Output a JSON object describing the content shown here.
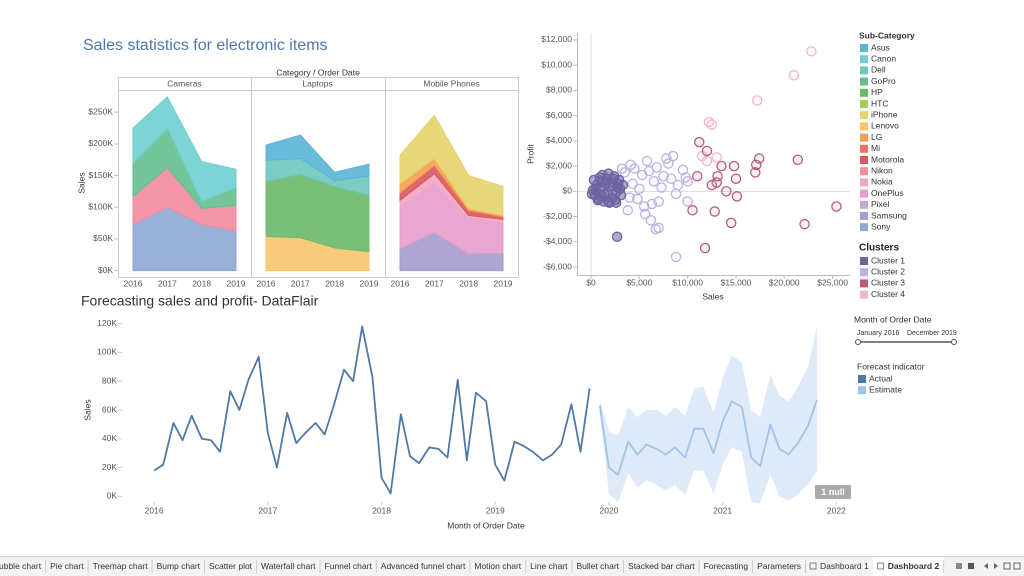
{
  "tabs": [
    "ubble chart",
    "Pie chart",
    "Treemap chart",
    "Bump chart",
    "Scatter plot",
    "Waterfall chart",
    "Funnel chart",
    "Advanced funnel chart",
    "Motion chart",
    "Line chart",
    "Bullet chart",
    "Stacked bar chart",
    "Forecasting",
    "Parameters",
    "Dashboard 1",
    "Dashboard 2"
  ],
  "active_tab": 15,
  "legends": {
    "sub_category": {
      "title": "Sub-Category",
      "items": [
        {
          "name": "Asus",
          "color": "#5ab4d6"
        },
        {
          "name": "Canon",
          "color": "#6fcfd0"
        },
        {
          "name": "Dell",
          "color": "#6dc8be"
        },
        {
          "name": "GoPro",
          "color": "#65bf8f"
        },
        {
          "name": "HP",
          "color": "#6cb86a"
        },
        {
          "name": "HTC",
          "color": "#a6cb5c"
        },
        {
          "name": "iPhone",
          "color": "#e6d36c"
        },
        {
          "name": "Lenovo",
          "color": "#f7c46a"
        },
        {
          "name": "LG",
          "color": "#f5a04c"
        },
        {
          "name": "Mi",
          "color": "#e9735b"
        },
        {
          "name": "Motorola",
          "color": "#d9575e"
        },
        {
          "name": "Nikon",
          "color": "#f28aa0"
        },
        {
          "name": "Nokia",
          "color": "#f3a6c0"
        },
        {
          "name": "OnePlus",
          "color": "#e79ccc"
        },
        {
          "name": "Pixel",
          "color": "#c9a7d5"
        },
        {
          "name": "Samsung",
          "color": "#a69bce"
        },
        {
          "name": "Sony",
          "color": "#8ea7d5"
        }
      ]
    },
    "clusters_title": "Clusters",
    "date_filter": {
      "title": "Month of Order Date",
      "start": "January 2016",
      "end": "December 2019"
    },
    "forecast_title": "Forecast indicator"
  },
  "chart_data": [
    {
      "type": "area",
      "title": "Sales statistics for electronic items",
      "header": "Category / Order Date",
      "ylabel": "Sales",
      "stacked": true,
      "ylim": [
        -10000,
        285000
      ],
      "yticks": [
        {
          "value": 0,
          "label": "$0K"
        },
        {
          "value": 50000,
          "label": "$50K"
        },
        {
          "value": 100000,
          "label": "$100K"
        },
        {
          "value": 150000,
          "label": "$150K"
        },
        {
          "value": 200000,
          "label": "$200K"
        },
        {
          "value": 250000,
          "label": "$250K"
        }
      ],
      "facets": [
        {
          "name": "Cameras",
          "categories": [
            "2016",
            "2017",
            "2018",
            "2019"
          ],
          "series": [
            {
              "name": "Sony",
              "values": [
                73000,
                100000,
                73000,
                62000
              ]
            },
            {
              "name": "Nikon",
              "values": [
                44000,
                63000,
                25000,
                41000
              ]
            },
            {
              "name": "GoPro",
              "values": [
                52000,
                62000,
                11000,
                28000
              ]
            },
            {
              "name": "Canon",
              "values": [
                56000,
                49000,
                63000,
                29000
              ]
            }
          ]
        },
        {
          "name": "Laptops",
          "categories": [
            "2016",
            "2017",
            "2018",
            "2019"
          ],
          "series": [
            {
              "name": "Lenovo",
              "values": [
                54000,
                52000,
                36000,
                30000
              ]
            },
            {
              "name": "HP",
              "values": [
                87000,
                100000,
                97000,
                89000
              ]
            },
            {
              "name": "Dell",
              "values": [
                33000,
                25000,
                9000,
                30000
              ]
            },
            {
              "name": "Asus",
              "values": [
                24000,
                37000,
                13000,
                19000
              ]
            }
          ]
        },
        {
          "name": "Mobile Phones",
          "categories": [
            "2016",
            "2017",
            "2018",
            "2019"
          ],
          "series": [
            {
              "name": "Samsung",
              "values": [
                35000,
                60000,
                27000,
                28000
              ]
            },
            {
              "name": "OnePlus",
              "values": [
                66000,
                79000,
                55000,
                48000
              ]
            },
            {
              "name": "Nokia",
              "values": [
                10000,
                14000,
                5000,
                5000
              ]
            },
            {
              "name": "Motorola",
              "values": [
                12000,
                13000,
                8000,
                4000
              ]
            },
            {
              "name": "LG",
              "values": [
                14000,
                11000,
                3000,
                2000
              ]
            },
            {
              "name": "iPhone",
              "values": [
                45000,
                68000,
                52000,
                46000
              ]
            }
          ]
        }
      ]
    },
    {
      "type": "scatter",
      "xlabel": "Sales",
      "ylabel": "Profit",
      "xlim": [
        -1450,
        26800
      ],
      "ylim": [
        -6630,
        12550
      ],
      "xticks": [
        {
          "value": 0,
          "label": "$0"
        },
        {
          "value": 5000,
          "label": "$5,000"
        },
        {
          "value": 10000,
          "label": "$10,000"
        },
        {
          "value": 15000,
          "label": "$15,000"
        },
        {
          "value": 20000,
          "label": "$20,000"
        },
        {
          "value": 25000,
          "label": "$25,000"
        }
      ],
      "yticks": [
        {
          "value": -6000,
          "label": "-$6,000"
        },
        {
          "value": -4000,
          "label": "-$4,000"
        },
        {
          "value": -2000,
          "label": "-$2,000"
        },
        {
          "value": 0,
          "label": "$0"
        },
        {
          "value": 2000,
          "label": "$2,000"
        },
        {
          "value": 4000,
          "label": "$4,000"
        },
        {
          "value": 6000,
          "label": "$6,000"
        },
        {
          "value": 8000,
          "label": "$8,000"
        },
        {
          "value": 10000,
          "label": "$10,000"
        },
        {
          "value": 12000,
          "label": "$12,000"
        }
      ],
      "series": [
        {
          "name": "Cluster 1",
          "color": "#6e62a0",
          "x": [
            200,
            400,
            600,
            800,
            1000,
            1200,
            1400,
            1600,
            1800,
            2000,
            2200,
            2400,
            2600,
            2800,
            3000,
            300,
            700,
            1100,
            1500,
            1900,
            2300,
            2700,
            3100,
            500,
            900,
            1300,
            1700,
            2100,
            2500,
            100,
            3300,
            1800,
            2600,
            1200,
            2900,
            2700
          ],
          "values": [
            100,
            -300,
            500,
            -600,
            300,
            800,
            -200,
            1000,
            -800,
            400,
            -500,
            1200,
            -100,
            600,
            200,
            900,
            -700,
            -400,
            600,
            -900,
            1000,
            300,
            -300,
            200,
            1100,
            -800,
            -100,
            700,
            -700,
            -200,
            500,
            1400,
            -900,
            1300,
            900,
            -3600
          ]
        },
        {
          "name": "Cluster 2",
          "color": "#b9b3e2",
          "x": [
            3500,
            4000,
            4500,
            5000,
            5500,
            6000,
            6500,
            7000,
            7500,
            8000,
            8500,
            9000,
            9500,
            10000,
            3800,
            4300,
            4800,
            5300,
            5800,
            6300,
            6800,
            7300,
            7800,
            8300,
            8800,
            3200,
            4100,
            5600,
            6700,
            7000,
            8800,
            10000,
            9800,
            6200
          ],
          "values": [
            1500,
            -500,
            1800,
            200,
            -1200,
            1600,
            800,
            -800,
            1200,
            2200,
            2800,
            500,
            1700,
            -800,
            -1500,
            600,
            -600,
            1300,
            2400,
            -1000,
            1900,
            300,
            2600,
            1000,
            -200,
            1800,
            2100,
            -1800,
            -3000,
            -2900,
            -5200,
            800,
            1100,
            -2300
          ]
        },
        {
          "name": "Cluster 3",
          "color": "#b85c7a",
          "x": [
            11200,
            12000,
            13500,
            12800,
            10500,
            11800,
            13000,
            14000,
            14800,
            15000,
            14500,
            15100,
            17100,
            17400,
            17000,
            21400,
            22100,
            25400,
            13100,
            12500,
            11000
          ],
          "values": [
            3900,
            3200,
            2000,
            -1600,
            -1500,
            -4500,
            700,
            0,
            2000,
            1000,
            -2500,
            -400,
            2100,
            2600,
            1500,
            2500,
            -2600,
            -1200,
            1200,
            500,
            1200
          ]
        },
        {
          "name": "Cluster 4",
          "color": "#f2b6cc",
          "x": [
            21000,
            22800,
            17200,
            12200,
            12500,
            12000,
            13000,
            11500
          ],
          "values": [
            9200,
            11100,
            7200,
            5500,
            5300,
            2400,
            2700,
            2800
          ]
        }
      ]
    },
    {
      "type": "line",
      "title": "Forecasting sales and profit- DataFlair",
      "xlabel": "Month of Order Date",
      "ylabel": "Sales",
      "xlim": [
        2015.7,
        2022.12
      ],
      "ylim": [
        -6000,
        126000
      ],
      "xticks": [
        2016,
        2017,
        2018,
        2019,
        2020,
        2021,
        2022
      ],
      "yticks": [
        {
          "value": 0,
          "label": "0K"
        },
        {
          "value": 20000,
          "label": "20K"
        },
        {
          "value": 40000,
          "label": "40K"
        },
        {
          "value": 60000,
          "label": "60K"
        },
        {
          "value": 80000,
          "label": "80K"
        },
        {
          "value": 100000,
          "label": "100K"
        },
        {
          "value": 120000,
          "label": "120K"
        }
      ],
      "annotation": "1 null",
      "series": [
        {
          "name": "Actual",
          "color": "#4e79a7",
          "x": [
            2016.0,
            2016.08,
            2016.17,
            2016.25,
            2016.33,
            2016.42,
            2016.5,
            2016.58,
            2016.67,
            2016.75,
            2016.83,
            2016.92,
            2017.0,
            2017.08,
            2017.17,
            2017.25,
            2017.33,
            2017.42,
            2017.5,
            2017.58,
            2017.67,
            2017.75,
            2017.83,
            2017.92,
            2018.0,
            2018.08,
            2018.17,
            2018.25,
            2018.33,
            2018.42,
            2018.5,
            2018.58,
            2018.67,
            2018.75,
            2018.83,
            2018.92,
            2019.0,
            2019.08,
            2019.17,
            2019.25,
            2019.33,
            2019.42,
            2019.5,
            2019.58,
            2019.67,
            2019.75,
            2019.83
          ],
          "values": [
            18000,
            22000,
            51000,
            39000,
            56000,
            40000,
            39000,
            31000,
            73000,
            60000,
            81000,
            97000,
            44000,
            20000,
            58000,
            37000,
            44000,
            51000,
            43000,
            63000,
            88000,
            80000,
            118000,
            83000,
            13000,
            2000,
            57000,
            28000,
            23000,
            34000,
            33000,
            27000,
            81000,
            25000,
            72000,
            66000,
            22000,
            11000,
            38000,
            35000,
            31000,
            25000,
            29000,
            36000,
            64000,
            31000,
            75000
          ]
        },
        {
          "name": "Estimate",
          "color": "#a0c4e8",
          "x": [
            2019.92,
            2020.0,
            2020.08,
            2020.17,
            2020.25,
            2020.33,
            2020.42,
            2020.5,
            2020.58,
            2020.67,
            2020.75,
            2020.83,
            2020.92,
            2021.0,
            2021.08,
            2021.17,
            2021.25,
            2021.33,
            2021.42,
            2021.5,
            2021.58,
            2021.67,
            2021.75,
            2021.83
          ],
          "values": [
            63000,
            20000,
            15000,
            38000,
            29000,
            36000,
            33000,
            29000,
            34000,
            27000,
            47000,
            47000,
            30000,
            52000,
            66000,
            62000,
            27000,
            21000,
            50000,
            33000,
            29000,
            38000,
            49000,
            67000
          ],
          "upper": [
            67000,
            45000,
            42000,
            62000,
            55000,
            60000,
            60000,
            56000,
            62000,
            56000,
            75000,
            76000,
            58000,
            82000,
            98000,
            93000,
            60000,
            55000,
            85000,
            70000,
            66000,
            77000,
            90000,
            118000
          ],
          "lower": [
            58000,
            2000,
            -4000,
            16000,
            6000,
            11000,
            8000,
            4000,
            8000,
            1000,
            18000,
            18000,
            2000,
            22000,
            34000,
            31000,
            -4000,
            -5000,
            15000,
            0,
            -3000,
            2000,
            8000,
            18000
          ]
        }
      ]
    }
  ]
}
